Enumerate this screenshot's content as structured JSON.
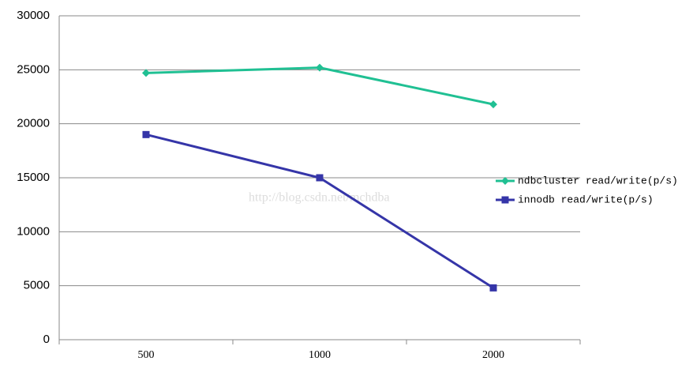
{
  "chart_data": {
    "type": "line",
    "categories": [
      "500",
      "1000",
      "2000"
    ],
    "series": [
      {
        "name": "ndbcluster read/write(p/s)",
        "color": "#20c093",
        "marker": "diamond",
        "values": [
          24700,
          25200,
          21800
        ]
      },
      {
        "name": "innodb read/write(p/s)",
        "color": "#3535a8",
        "marker": "square",
        "values": [
          19000,
          15000,
          4800
        ]
      }
    ],
    "ylim": [
      0,
      30000
    ],
    "yticks": [
      0,
      5000,
      10000,
      15000,
      20000,
      25000,
      30000
    ],
    "grid": true,
    "legend": "right",
    "watermark": "http://blog.csdn.net/mchdba"
  }
}
